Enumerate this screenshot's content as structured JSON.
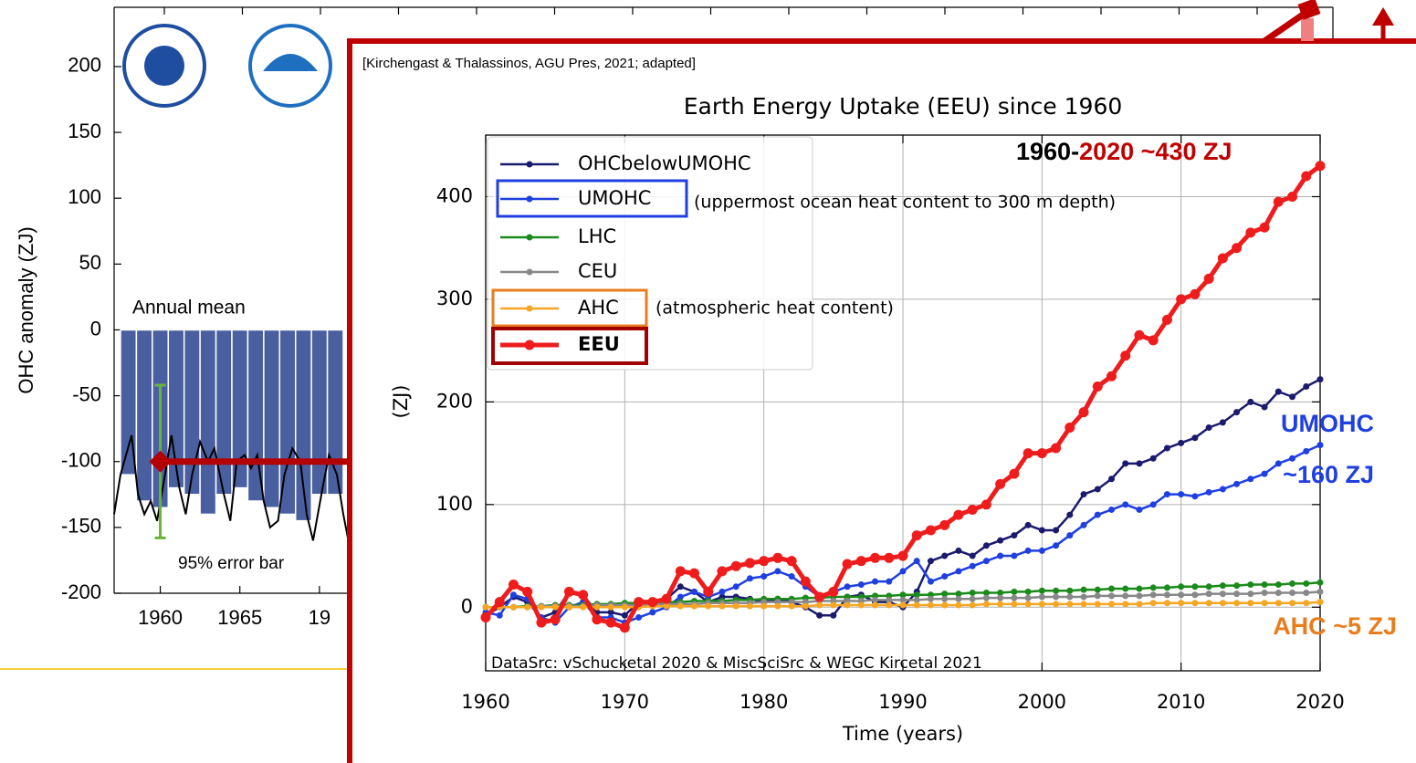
{
  "chart_data": [
    {
      "type": "bar",
      "y_label": "OHC anomaly (ZJ)",
      "x": [
        1958,
        1959,
        1960,
        1961,
        1962,
        1963,
        1964,
        1965,
        1966,
        1967,
        1968,
        1969,
        1970,
        1971
      ],
      "values": [
        -110,
        -130,
        -135,
        -120,
        -125,
        -140,
        -125,
        -120,
        -130,
        -135,
        -140,
        -145,
        -125,
        -125
      ],
      "color": "#4a5fa0",
      "line": {
        "color": "#000000",
        "x": [
          1957.1,
          1957.5,
          1958.2,
          1958.6,
          1959,
          1959.4,
          1959.8,
          1960.3,
          1960.7,
          1961.2,
          1961.6,
          1962,
          1962.5,
          1963,
          1963.4,
          1964,
          1964.4,
          1964.8,
          1965.3,
          1965.7,
          1966.1,
          1966.5,
          1966.9,
          1967.4,
          1967.8,
          1968.3,
          1968.8,
          1969.2,
          1969.6,
          1970.2,
          1970.6,
          1971.1,
          1971.5,
          1971.9
        ],
        "values": [
          -140,
          -110,
          -80,
          -125,
          -140,
          -130,
          -145,
          -110,
          -80,
          -120,
          -140,
          -110,
          -85,
          -100,
          -90,
          -125,
          -145,
          -100,
          -95,
          -105,
          -95,
          -130,
          -150,
          -145,
          -110,
          -90,
          -100,
          -140,
          -160,
          -120,
          -95,
          -110,
          -140,
          -165
        ]
      },
      "error_bar": {
        "x": 1960,
        "value": -100,
        "error": 58,
        "color": "#6ab43c",
        "marker_color": "#b30000"
      },
      "annotations": [
        {
          "text": "Annual mean",
          "color": "#3d4f9a"
        },
        {
          "text": "95% error bar",
          "color": "#6ab43c"
        }
      ],
      "xlim": [
        1957.1,
        1971.9
      ],
      "ylim": [
        -200,
        245
      ],
      "xticks": [
        1960,
        1965,
        {
          "value": 1970,
          "label": "19"
        }
      ],
      "yticks": [
        200,
        150,
        100,
        50,
        0,
        -50,
        -100,
        -150,
        -200
      ]
    },
    {
      "type": "line",
      "title": "Earth Energy Uptake (EEU) since 1960",
      "source": "[Kirchengast & Thalassinos, AGU Pres, 2021; adapted]",
      "x_label": "Time (years)",
      "y_label": "(ZJ)",
      "x": [
        1960,
        1961,
        1962,
        1963,
        1964,
        1965,
        1966,
        1967,
        1968,
        1969,
        1970,
        1971,
        1972,
        1973,
        1974,
        1975,
        1976,
        1977,
        1978,
        1979,
        1980,
        1981,
        1982,
        1983,
        1984,
        1985,
        1986,
        1987,
        1988,
        1989,
        1990,
        1991,
        1992,
        1993,
        1994,
        1995,
        1996,
        1997,
        1998,
        1999,
        2000,
        2001,
        2002,
        2003,
        2004,
        2005,
        2006,
        2007,
        2008,
        2009,
        2010,
        2011,
        2012,
        2013,
        2014,
        2015,
        2016,
        2017,
        2018,
        2019,
        2020
      ],
      "series": [
        {
          "name": "OHCbelowUMOHC",
          "color": "#1a1a6e",
          "values": [
            -8,
            0,
            10,
            5,
            -10,
            -5,
            15,
            12,
            -5,
            -5,
            -8,
            5,
            5,
            8,
            20,
            15,
            5,
            10,
            10,
            8,
            5,
            8,
            5,
            0,
            -8,
            -8,
            10,
            12,
            5,
            5,
            0,
            15,
            45,
            50,
            55,
            50,
            60,
            65,
            70,
            80,
            75,
            75,
            90,
            110,
            115,
            125,
            140,
            140,
            145,
            155,
            160,
            165,
            175,
            180,
            190,
            200,
            195,
            210,
            205,
            215,
            222
          ]
        },
        {
          "name": "UMOHC",
          "color": "#1f3fe0",
          "values": [
            -5,
            -8,
            12,
            8,
            -10,
            -15,
            0,
            5,
            -10,
            -10,
            -15,
            -10,
            -5,
            0,
            10,
            15,
            10,
            15,
            20,
            28,
            30,
            35,
            30,
            20,
            10,
            15,
            20,
            22,
            25,
            25,
            35,
            45,
            25,
            30,
            35,
            40,
            45,
            50,
            50,
            55,
            55,
            60,
            70,
            80,
            90,
            95,
            100,
            95,
            100,
            110,
            110,
            108,
            112,
            115,
            120,
            125,
            130,
            140,
            145,
            152,
            158
          ]
        },
        {
          "name": "LHC",
          "color": "#1a8a1a",
          "values": [
            0,
            0,
            0,
            1,
            1,
            2,
            2,
            2,
            3,
            3,
            4,
            4,
            4,
            5,
            5,
            6,
            6,
            6,
            7,
            7,
            8,
            8,
            8,
            9,
            9,
            10,
            10,
            10,
            11,
            11,
            12,
            12,
            12,
            13,
            13,
            14,
            14,
            14,
            15,
            15,
            16,
            16,
            16,
            17,
            17,
            18,
            18,
            18,
            19,
            19,
            20,
            20,
            20,
            21,
            21,
            22,
            22,
            22,
            23,
            23,
            24
          ]
        },
        {
          "name": "CEU",
          "color": "#888888",
          "values": [
            0,
            0,
            0,
            0,
            1,
            1,
            1,
            1,
            2,
            2,
            2,
            2,
            3,
            3,
            3,
            3,
            4,
            4,
            4,
            4,
            5,
            5,
            5,
            5,
            6,
            6,
            6,
            6,
            7,
            7,
            7,
            7,
            8,
            8,
            8,
            8,
            9,
            9,
            9,
            9,
            10,
            10,
            10,
            10,
            11,
            11,
            11,
            11,
            12,
            12,
            12,
            12,
            13,
            13,
            13,
            13,
            14,
            14,
            14,
            14,
            15
          ]
        },
        {
          "name": "AHC",
          "color": "#f5a623",
          "values": [
            0,
            0,
            0,
            0,
            0,
            0,
            0,
            0,
            0,
            0,
            0,
            0,
            1,
            1,
            1,
            1,
            1,
            1,
            1,
            1,
            1,
            1,
            1,
            1,
            2,
            2,
            2,
            2,
            2,
            2,
            2,
            2,
            2,
            2,
            2,
            2,
            3,
            3,
            3,
            3,
            3,
            3,
            3,
            3,
            3,
            3,
            3,
            3,
            4,
            4,
            4,
            4,
            4,
            4,
            4,
            4,
            4,
            4,
            4,
            4,
            5
          ]
        },
        {
          "name": "EEU",
          "color": "#ee1c1c",
          "values": [
            -10,
            5,
            22,
            15,
            -15,
            -12,
            15,
            12,
            -12,
            -15,
            -20,
            5,
            5,
            8,
            35,
            33,
            15,
            35,
            40,
            43,
            45,
            48,
            45,
            25,
            10,
            15,
            42,
            45,
            48,
            48,
            50,
            70,
            75,
            80,
            90,
            95,
            100,
            120,
            130,
            150,
            150,
            155,
            175,
            190,
            215,
            225,
            245,
            265,
            260,
            280,
            300,
            305,
            320,
            340,
            350,
            365,
            370,
            395,
            400,
            420,
            430
          ]
        }
      ],
      "annotations": [
        {
          "text": "1960-",
          "color": "#000000"
        },
        {
          "text": "2020",
          "color": "#c00000"
        },
        {
          "text": "~430 ZJ",
          "color": "#c00000"
        },
        {
          "text": "UMOHC",
          "color": "#1f3fe0"
        },
        {
          "text": "~160 ZJ",
          "color": "#1f3fe0"
        },
        {
          "text": "AHC",
          "color": "#e87d1e"
        },
        {
          "text": "~5 ZJ",
          "color": "#e87d1e"
        },
        {
          "text": "DataSrc: vSchucketal 2020 & MiscSciSrc & WEGC Kircetal 2021",
          "color": "#000000"
        },
        {
          "text": "(uppermost ocean heat content to 300 m depth)",
          "color": "#000000"
        },
        {
          "text": "(atmospheric heat content)",
          "color": "#000000"
        }
      ],
      "xlim": [
        1960,
        2020
      ],
      "ylim": [
        -62,
        460
      ],
      "xticks": [
        1960,
        1970,
        1980,
        1990,
        2000,
        2010,
        2020
      ],
      "yticks": [
        0,
        100,
        200,
        300,
        400
      ],
      "grid": true,
      "legend": "upper left"
    }
  ]
}
